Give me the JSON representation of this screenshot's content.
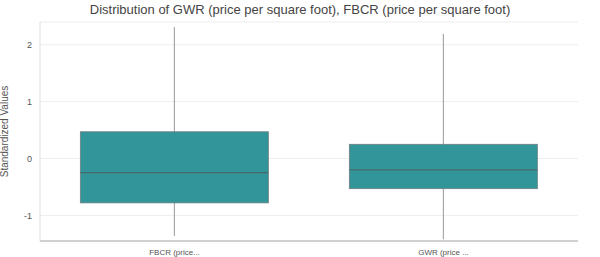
{
  "chart_data": {
    "type": "box",
    "title": "Distribution of GWR (price per square foot), FBCR (price per square foot)",
    "y_label": "Standardized Values",
    "categories": [
      "FBCR (price...",
      "GWR (price ..."
    ],
    "boxes": [
      {
        "min": -1.36,
        "q1": -0.78,
        "median": -0.25,
        "q3": 0.47,
        "max": 2.31
      },
      {
        "min": -1.42,
        "q1": -0.53,
        "median": -0.2,
        "q3": 0.25,
        "max": 2.19
      }
    ],
    "color": "#31959a",
    "ylim": [
      -1.45,
      2.4
    ],
    "yticks": [
      -1,
      0,
      1,
      2
    ],
    "grid": true
  }
}
